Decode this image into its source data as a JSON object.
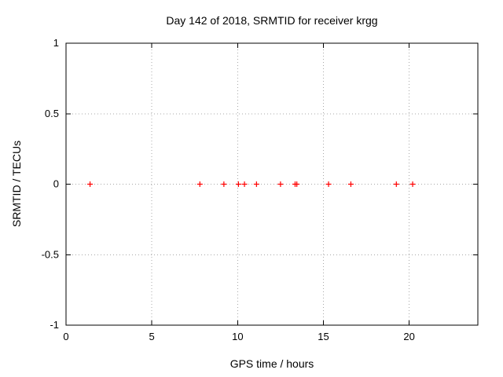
{
  "title": "Day 142 of 2018, SRMTID for receiver krgg",
  "chart_data": {
    "type": "scatter",
    "title": "Day 142 of 2018, SRMTID for receiver krgg",
    "xlabel": "GPS time / hours",
    "ylabel": "SRMTID / TECUs",
    "xlim": [
      0,
      24
    ],
    "ylim": [
      -1,
      1
    ],
    "xticks": [
      0,
      5,
      10,
      15,
      20
    ],
    "yticks": [
      1,
      0.5,
      0,
      -0.5,
      -1
    ],
    "grid": true,
    "legend_position": "none",
    "series": [
      {
        "name": "SRMTID",
        "marker": "plus",
        "color": "#ff0000",
        "x": [
          1.4,
          7.8,
          9.2,
          10.05,
          10.4,
          11.1,
          12.5,
          13.35,
          13.45,
          15.3,
          16.6,
          19.25,
          20.2
        ],
        "y": [
          0,
          0,
          0,
          0,
          0,
          0,
          0,
          0,
          0,
          0,
          0,
          0,
          0
        ]
      }
    ]
  },
  "colors": {
    "marker": "#ff0000",
    "grid": "#a8a8a8",
    "axis": "#000000",
    "background": "#ffffff"
  }
}
